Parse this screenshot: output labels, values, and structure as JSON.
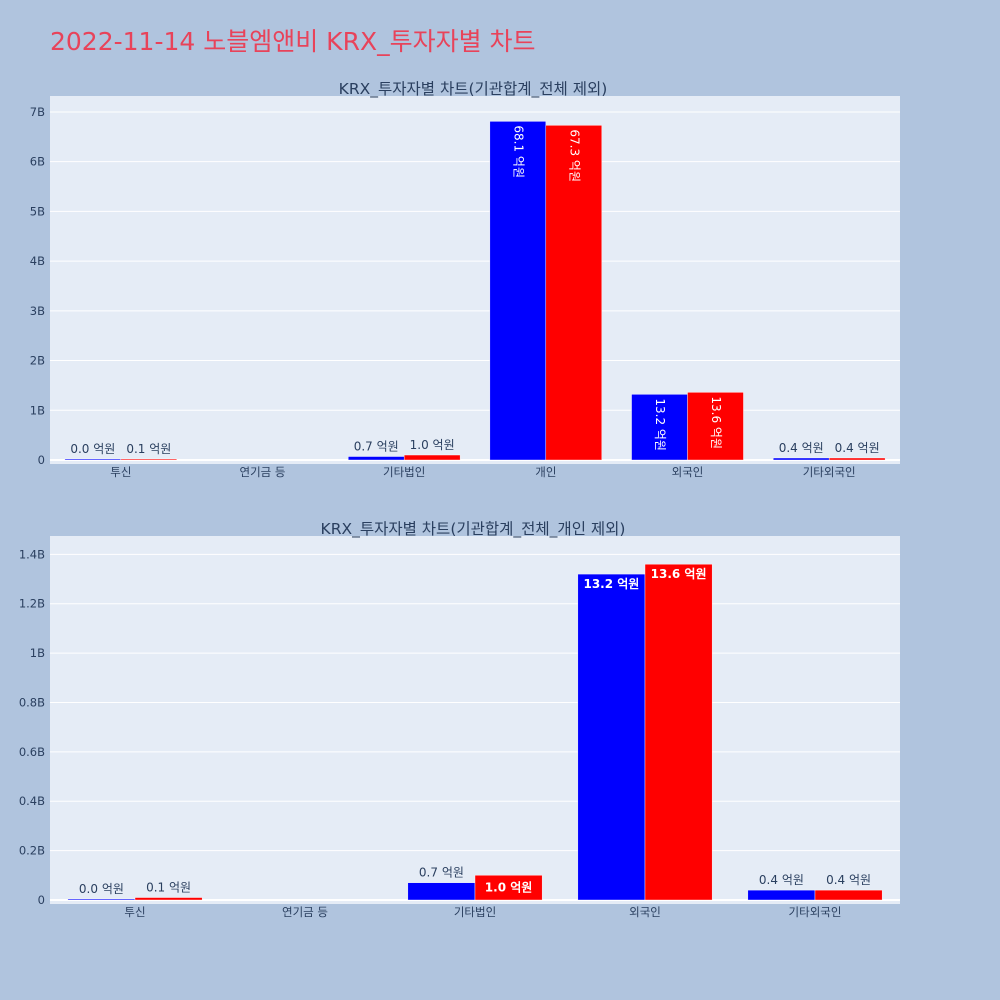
{
  "title": "2022-11-14 노블엠앤비 KRX_투자자별 차트",
  "colors": {
    "background": "#b0c4de",
    "plot_bg": "#e5ecf6",
    "title": "#e8435a",
    "series1": "#0000ff",
    "series2": "#ff0000",
    "text": "#2a3f5f"
  },
  "chart_data": [
    {
      "type": "bar",
      "title": "KRX_투자자별 차트(기관합계_전체 제외)",
      "categories": [
        "투신",
        "연기금 등",
        "기타법인",
        "개인",
        "외국인",
        "기타외국인"
      ],
      "series": [
        {
          "color": "#0000ff",
          "values": [
            1000000,
            null,
            70000000,
            6810000000,
            1320000000,
            40000000
          ],
          "labels": [
            "0.0 억원",
            null,
            "0.7 억원",
            "68.1 억원",
            "13.2 억원",
            "0.4 억원"
          ]
        },
        {
          "color": "#ff0000",
          "values": [
            10000000,
            null,
            100000000,
            6730000000,
            1360000000,
            40000000
          ],
          "labels": [
            "0.1 억원",
            null,
            "1.0 억원",
            "67.3 억원",
            "13.6 억원",
            "0.4 억원"
          ]
        }
      ],
      "ylim": [
        0,
        7200000000
      ],
      "yticks": [
        {
          "value": 0,
          "label": "0"
        },
        {
          "value": 1000000000,
          "label": "1B"
        },
        {
          "value": 2000000000,
          "label": "2B"
        },
        {
          "value": 3000000000,
          "label": "3B"
        },
        {
          "value": 4000000000,
          "label": "4B"
        },
        {
          "value": 5000000000,
          "label": "5B"
        },
        {
          "value": 6000000000,
          "label": "6B"
        },
        {
          "value": 7000000000,
          "label": "7B"
        }
      ],
      "grid": true,
      "inside_label_style": "rotated"
    },
    {
      "type": "bar",
      "title": "KRX_투자자별 차트(기관합계_전체_개인 제외)",
      "categories": [
        "투신",
        "연기금 등",
        "기타법인",
        "외국인",
        "기타외국인"
      ],
      "series": [
        {
          "color": "#0000ff",
          "values": [
            1000000,
            null,
            70000000,
            1320000000,
            40000000
          ],
          "labels": [
            "0.0 억원",
            null,
            "0.7 억원",
            "13.2 억원",
            "0.4 억원"
          ]
        },
        {
          "color": "#ff0000",
          "values": [
            10000000,
            null,
            100000000,
            1360000000,
            40000000
          ],
          "labels": [
            "0.1 억원",
            null,
            "1.0 억원",
            "13.6 억원",
            "0.4 억원"
          ]
        }
      ],
      "ylim": [
        0,
        1450000000
      ],
      "yticks": [
        {
          "value": 0,
          "label": "0"
        },
        {
          "value": 200000000,
          "label": "0.2B"
        },
        {
          "value": 400000000,
          "label": "0.4B"
        },
        {
          "value": 600000000,
          "label": "0.6B"
        },
        {
          "value": 800000000,
          "label": "0.8B"
        },
        {
          "value": 1000000000,
          "label": "1B"
        },
        {
          "value": 1200000000,
          "label": "1.2B"
        },
        {
          "value": 1400000000,
          "label": "1.4B"
        }
      ],
      "grid": true,
      "inside_label_style": "horizontal"
    }
  ]
}
